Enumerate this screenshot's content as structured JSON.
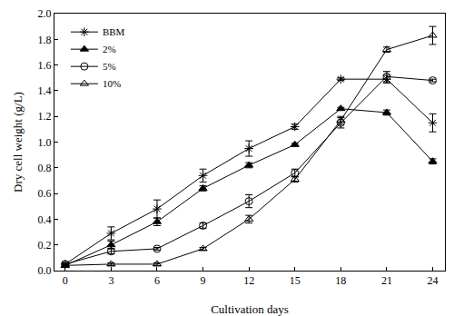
{
  "chart_data": {
    "type": "line",
    "x_label": "Cultivation days",
    "y_label": "Dry cell weight (g/L)",
    "x": [
      0,
      3,
      6,
      9,
      12,
      15,
      18,
      21,
      24
    ],
    "xlim": [
      -0.7,
      24.8
    ],
    "xticks": [
      0,
      3,
      6,
      9,
      12,
      15,
      18,
      21,
      24
    ],
    "ylim": [
      0,
      2.0
    ],
    "yticks": [
      {
        "value": 0,
        "label": "0.0"
      },
      0.2,
      0.4,
      0.6,
      0.8,
      {
        "value": 1.0,
        "label": "1.0"
      },
      1.2,
      1.4,
      1.6,
      1.8,
      {
        "value": 2.0,
        "label": "2.0"
      }
    ],
    "grid": false,
    "legend": "upper left",
    "series": [
      {
        "name": "BBM",
        "color": "#000000",
        "marker": "asterisk",
        "values": [
          0.05,
          0.29,
          0.48,
          0.74,
          0.95,
          1.12,
          1.49,
          1.49,
          1.15
        ],
        "error": [
          0.01,
          0.05,
          0.07,
          0.05,
          0.06,
          0.02,
          0.01,
          0.03,
          0.07
        ]
      },
      {
        "name": "2%",
        "color": "#000000",
        "marker": "filled-triangle",
        "values": [
          0.04,
          0.2,
          0.38,
          0.64,
          0.82,
          0.98,
          1.26,
          1.23,
          0.85
        ],
        "error": [
          0.01,
          0.03,
          0.03,
          0.02,
          0.02,
          0.01,
          0.01,
          0.02,
          0.02
        ]
      },
      {
        "name": "5%",
        "color": "#000000",
        "marker": "open-circle",
        "values": [
          0.05,
          0.15,
          0.17,
          0.35,
          0.54,
          0.76,
          1.15,
          1.51,
          1.48
        ],
        "error": [
          0.01,
          0.02,
          0.01,
          0.02,
          0.05,
          0.03,
          0.04,
          0.04,
          0.01
        ]
      },
      {
        "name": "10%",
        "color": "#000000",
        "marker": "open-triangle",
        "values": [
          0.04,
          0.05,
          0.05,
          0.17,
          0.4,
          0.71,
          1.17,
          1.72,
          1.83
        ],
        "error": [
          0.01,
          0.01,
          0.01,
          0.01,
          0.03,
          0.02,
          0.03,
          0.02,
          0.07
        ]
      }
    ]
  }
}
